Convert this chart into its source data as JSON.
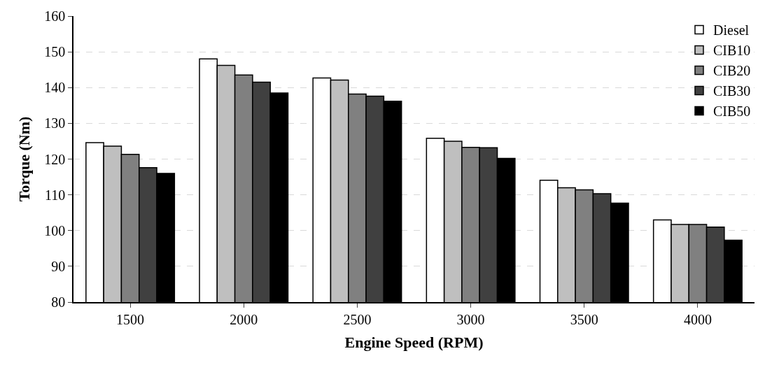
{
  "chart_data": {
    "type": "bar",
    "xlabel": "Engine Speed (RPM)",
    "ylabel": "Torque (Nm)",
    "categories": [
      "1500",
      "2000",
      "2500",
      "3000",
      "3500",
      "4000"
    ],
    "series": [
      {
        "name": "Diesel",
        "color": "#ffffff",
        "values": [
          124.6,
          148,
          142.7,
          125.8,
          114.1,
          103
        ]
      },
      {
        "name": "CIB10",
        "color": "#bfbfbf",
        "values": [
          123.6,
          146.2,
          142.1,
          125,
          112,
          101.7
        ]
      },
      {
        "name": "CIB20",
        "color": "#808080",
        "values": [
          121.3,
          143.5,
          138.2,
          123.3,
          111.4,
          101.7
        ]
      },
      {
        "name": "CIB30",
        "color": "#404040",
        "values": [
          117.6,
          141.5,
          137.6,
          123.2,
          110.3,
          101
        ]
      },
      {
        "name": "CIB50",
        "color": "#000000",
        "values": [
          116,
          138.5,
          136.2,
          120.2,
          107.7,
          97.3
        ]
      }
    ],
    "ylim": [
      80,
      160
    ],
    "yticks": [
      80,
      90,
      100,
      110,
      120,
      130,
      140,
      150,
      160
    ],
    "grid": "y",
    "legend": "top right"
  }
}
